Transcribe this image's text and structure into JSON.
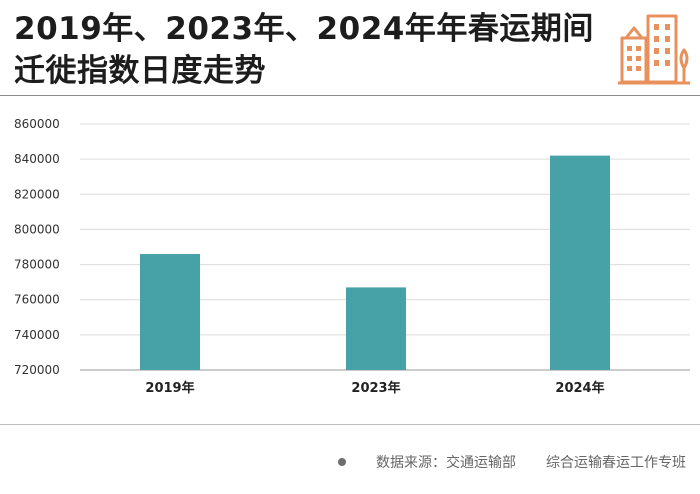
{
  "header": {
    "title": "2019年、2023年、2024年年春运期间迁徙指数日度走势"
  },
  "footer": {
    "source_label": "数据来源：交通运输部",
    "source_org": "综合运输春运工作专班"
  },
  "colors": {
    "bar": "#46a2a6",
    "icon": "#e8915c"
  },
  "icons": {
    "header_icon": "city-buildings-icon",
    "footer_icon": "bullet-dot-icon"
  },
  "chart_data": {
    "type": "bar",
    "categories": [
      "2019年",
      "2023年",
      "2024年"
    ],
    "values": [
      786000,
      767000,
      842000
    ],
    "ylim": [
      720000,
      860000
    ],
    "yticks": [
      720000,
      740000,
      760000,
      780000,
      800000,
      820000,
      840000,
      860000
    ],
    "title": "",
    "xlabel": "",
    "ylabel": "",
    "grid": true
  }
}
